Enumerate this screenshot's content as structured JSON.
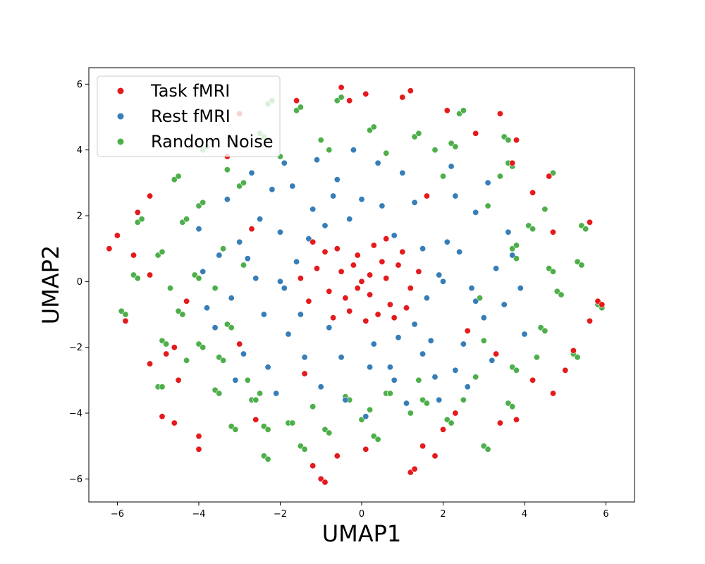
{
  "chart_data": {
    "type": "scatter",
    "xlabel": "UMAP1",
    "ylabel": "UMAP2",
    "xlim": [
      -6.7,
      6.7
    ],
    "ylim": [
      -6.7,
      6.5
    ],
    "xticks": [
      -6,
      -4,
      -2,
      0,
      2,
      4,
      6
    ],
    "yticks": [
      -6,
      -4,
      -2,
      0,
      2,
      4,
      6
    ],
    "xtick_labels": [
      "−6",
      "−4",
      "−2",
      "0",
      "2",
      "4",
      "6"
    ],
    "ytick_labels": [
      "−6",
      "−4",
      "−2",
      "0",
      "2",
      "4",
      "6"
    ],
    "grid": false,
    "legend_position": "upper-left",
    "series": [
      {
        "name": "Task fMRI",
        "color": "#e41a1c",
        "points": [
          [
            -0.5,
            0.3
          ],
          [
            0.2,
            -0.4
          ],
          [
            -0.1,
            0.8
          ],
          [
            0.6,
            0.1
          ],
          [
            -0.8,
            -0.3
          ],
          [
            0.3,
            1.1
          ],
          [
            -0.3,
            -0.9
          ],
          [
            0.9,
            0.5
          ],
          [
            1.2,
            -0.2
          ],
          [
            -1.1,
            0.4
          ],
          [
            0.0,
            0.0
          ],
          [
            0.4,
            -1.0
          ],
          [
            -0.6,
            1.0
          ],
          [
            0.7,
            -0.7
          ],
          [
            -1.3,
            -0.6
          ],
          [
            1.0,
            0.9
          ],
          [
            -0.2,
            0.5
          ],
          [
            0.5,
            0.6
          ],
          [
            -0.9,
            0.9
          ],
          [
            0.1,
            -1.2
          ],
          [
            1.4,
            0.3
          ],
          [
            -1.5,
            0.1
          ],
          [
            0.8,
            -1.1
          ],
          [
            -0.4,
            -0.5
          ],
          [
            0.2,
            0.2
          ],
          [
            -0.7,
            -1.1
          ],
          [
            1.1,
            -0.8
          ],
          [
            -1.2,
            1.2
          ],
          [
            0.6,
            1.3
          ],
          [
            -0.1,
            -0.2
          ],
          [
            -5.5,
            2.1
          ],
          [
            -5.2,
            2.6
          ],
          [
            -6.0,
            1.4
          ],
          [
            -6.2,
            1.0
          ],
          [
            -5.8,
            -1.2
          ],
          [
            -4.8,
            -2.2
          ],
          [
            -4.6,
            -2.0
          ],
          [
            -5.2,
            -2.5
          ],
          [
            -4.9,
            -4.1
          ],
          [
            -4.6,
            -4.3
          ],
          [
            -4.0,
            -4.7
          ],
          [
            -4.0,
            -5.1
          ],
          [
            -4.5,
            -3.0
          ],
          [
            -1.2,
            -5.6
          ],
          [
            -1.0,
            -6.0
          ],
          [
            -0.9,
            -6.1
          ],
          [
            -0.6,
            -5.3
          ],
          [
            0.1,
            -5.1
          ],
          [
            1.2,
            -5.8
          ],
          [
            1.3,
            -5.7
          ],
          [
            1.5,
            -5.0
          ],
          [
            1.8,
            -5.3
          ],
          [
            2.0,
            -4.5
          ],
          [
            2.3,
            -4.0
          ],
          [
            3.4,
            -4.3
          ],
          [
            3.8,
            -4.2
          ],
          [
            4.2,
            -3.0
          ],
          [
            4.7,
            -3.4
          ],
          [
            5.2,
            -2.1
          ],
          [
            5.0,
            -2.7
          ],
          [
            5.6,
            -1.2
          ],
          [
            5.8,
            -0.6
          ],
          [
            5.9,
            -0.7
          ],
          [
            5.6,
            1.8
          ],
          [
            4.7,
            1.5
          ],
          [
            4.2,
            2.7
          ],
          [
            4.6,
            3.2
          ],
          [
            3.7,
            3.6
          ],
          [
            3.8,
            4.3
          ],
          [
            3.4,
            5.1
          ],
          [
            1.2,
            5.8
          ],
          [
            1.0,
            5.6
          ],
          [
            -0.5,
            5.9
          ],
          [
            -0.3,
            5.5
          ],
          [
            0.1,
            5.7
          ],
          [
            -1.6,
            5.5
          ],
          [
            -3.0,
            5.1
          ],
          [
            -5.6,
            0.8
          ],
          [
            -5.2,
            0.2
          ],
          [
            -4.3,
            -0.6
          ],
          [
            -3.0,
            -1.9
          ],
          [
            -2.6,
            -4.2
          ],
          [
            2.8,
            4.5
          ],
          [
            2.1,
            5.2
          ],
          [
            -3.3,
            3.8
          ],
          [
            3.3,
            -2.2
          ],
          [
            2.6,
            -1.5
          ],
          [
            -2.7,
            1.6
          ],
          [
            1.6,
            2.6
          ],
          [
            -1.4,
            -2.8
          ]
        ]
      },
      {
        "name": "Rest fMRI",
        "color": "#377eb8",
        "points": [
          [
            -2.0,
            1.5
          ],
          [
            2.1,
            1.2
          ],
          [
            -1.8,
            -1.6
          ],
          [
            1.7,
            -1.8
          ],
          [
            0.0,
            2.5
          ],
          [
            0.2,
            -2.6
          ],
          [
            -2.6,
            0.1
          ],
          [
            2.7,
            -0.2
          ],
          [
            -1.2,
            2.2
          ],
          [
            1.3,
            2.4
          ],
          [
            -1.4,
            -2.3
          ],
          [
            1.5,
            -2.2
          ],
          [
            -2.4,
            -1.0
          ],
          [
            2.4,
            0.9
          ],
          [
            -3.0,
            1.2
          ],
          [
            3.0,
            -1.1
          ],
          [
            -0.6,
            3.1
          ],
          [
            0.8,
            -3.0
          ],
          [
            -3.2,
            -0.5
          ],
          [
            3.3,
            0.4
          ],
          [
            -2.2,
            2.8
          ],
          [
            2.3,
            -2.7
          ],
          [
            -1.0,
            -3.2
          ],
          [
            1.0,
            3.3
          ],
          [
            -2.9,
            -2.2
          ],
          [
            2.8,
            2.1
          ],
          [
            -3.5,
            0.8
          ],
          [
            3.5,
            -0.7
          ],
          [
            0.4,
            3.6
          ],
          [
            -0.4,
            -3.6
          ],
          [
            -1.6,
            0.6
          ],
          [
            1.6,
            -0.5
          ],
          [
            -0.9,
            1.7
          ],
          [
            0.9,
            -1.7
          ],
          [
            -1.9,
            -0.2
          ],
          [
            1.9,
            0.2
          ],
          [
            -0.3,
            1.9
          ],
          [
            0.3,
            -1.9
          ],
          [
            -2.5,
            1.9
          ],
          [
            2.5,
            -1.9
          ],
          [
            -1.7,
            2.9
          ],
          [
            1.8,
            -2.9
          ],
          [
            -3.6,
            -1.4
          ],
          [
            3.6,
            1.5
          ],
          [
            -0.2,
            4.0
          ],
          [
            0.1,
            -4.1
          ],
          [
            -2.1,
            -3.4
          ],
          [
            2.2,
            3.5
          ],
          [
            -3.9,
            0.3
          ],
          [
            3.9,
            -0.2
          ],
          [
            -1.3,
            1.3
          ],
          [
            1.3,
            -1.3
          ],
          [
            -2.8,
            0.7
          ],
          [
            2.8,
            -0.6
          ],
          [
            -0.7,
            2.6
          ],
          [
            0.7,
            -2.6
          ],
          [
            -3.3,
            2.5
          ],
          [
            3.2,
            -2.4
          ],
          [
            -1.5,
            -1.0
          ],
          [
            1.5,
            1.0
          ],
          [
            -2.3,
            -2.6
          ],
          [
            2.3,
            2.6
          ],
          [
            -0.5,
            -2.3
          ],
          [
            0.5,
            2.3
          ],
          [
            -3.8,
            -0.8
          ],
          [
            3.7,
            0.8
          ],
          [
            -1.1,
            3.7
          ],
          [
            1.1,
            -3.7
          ],
          [
            -2.7,
            3.3
          ],
          [
            2.6,
            -3.2
          ],
          [
            -3.1,
            -3.0
          ],
          [
            3.1,
            3.0
          ],
          [
            -0.8,
            -1.4
          ],
          [
            0.8,
            1.4
          ],
          [
            -4.0,
            1.6
          ],
          [
            4.0,
            -1.6
          ],
          [
            -1.9,
            3.6
          ],
          [
            1.9,
            -3.6
          ],
          [
            -2.0,
            0.0
          ],
          [
            2.0,
            0.0
          ]
        ]
      },
      {
        "name": "Random Noise",
        "color": "#4daf4a",
        "points": [
          [
            -5.5,
            1.8
          ],
          [
            -5.4,
            1.9
          ],
          [
            -5.0,
            0.8
          ],
          [
            -4.9,
            0.9
          ],
          [
            -5.9,
            -0.9
          ],
          [
            -5.8,
            -1.0
          ],
          [
            -5.6,
            0.2
          ],
          [
            -5.5,
            0.1
          ],
          [
            -4.9,
            -1.8
          ],
          [
            -4.8,
            -1.9
          ],
          [
            -4.5,
            -0.9
          ],
          [
            -4.4,
            -1.0
          ],
          [
            -4.0,
            -1.9
          ],
          [
            -3.9,
            -2.0
          ],
          [
            -5.0,
            -3.2
          ],
          [
            -4.9,
            -3.2
          ],
          [
            -3.5,
            -2.3
          ],
          [
            -3.4,
            -2.4
          ],
          [
            -3.6,
            -3.3
          ],
          [
            -3.5,
            -3.4
          ],
          [
            -3.2,
            -4.4
          ],
          [
            -3.1,
            -4.5
          ],
          [
            -2.7,
            -3.6
          ],
          [
            -2.6,
            -3.6
          ],
          [
            -2.4,
            -4.4
          ],
          [
            -2.3,
            -4.5
          ],
          [
            -2.4,
            -5.3
          ],
          [
            -2.3,
            -5.4
          ],
          [
            -1.8,
            -4.3
          ],
          [
            -1.7,
            -4.3
          ],
          [
            -1.5,
            -5.0
          ],
          [
            -1.4,
            -5.1
          ],
          [
            -0.9,
            -4.5
          ],
          [
            -0.8,
            -4.6
          ],
          [
            -0.4,
            -3.5
          ],
          [
            -0.3,
            -3.6
          ],
          [
            0.3,
            -4.7
          ],
          [
            0.4,
            -4.8
          ],
          [
            0.6,
            -3.4
          ],
          [
            0.7,
            -3.4
          ],
          [
            1.5,
            -3.6
          ],
          [
            1.6,
            -3.7
          ],
          [
            2.1,
            -4.2
          ],
          [
            2.2,
            -4.3
          ],
          [
            3.0,
            -5.0
          ],
          [
            3.1,
            -5.1
          ],
          [
            3.6,
            -3.7
          ],
          [
            3.7,
            -3.8
          ],
          [
            3.7,
            -2.6
          ],
          [
            3.8,
            -2.7
          ],
          [
            4.4,
            -1.4
          ],
          [
            4.5,
            -1.5
          ],
          [
            4.8,
            -0.3
          ],
          [
            4.9,
            -0.4
          ],
          [
            5.2,
            -2.2
          ],
          [
            5.3,
            -2.3
          ],
          [
            5.8,
            -0.7
          ],
          [
            5.9,
            -0.8
          ],
          [
            5.3,
            0.6
          ],
          [
            5.4,
            0.5
          ],
          [
            4.6,
            0.4
          ],
          [
            4.7,
            0.3
          ],
          [
            5.4,
            1.7
          ],
          [
            5.5,
            1.6
          ],
          [
            3.7,
            1.0
          ],
          [
            3.8,
            1.1
          ],
          [
            4.1,
            1.7
          ],
          [
            4.2,
            1.6
          ],
          [
            4.6,
            3.2
          ],
          [
            4.7,
            3.3
          ],
          [
            3.6,
            3.6
          ],
          [
            3.7,
            3.5
          ],
          [
            3.5,
            4.4
          ],
          [
            3.6,
            4.3
          ],
          [
            2.4,
            5.1
          ],
          [
            2.5,
            5.2
          ],
          [
            2.2,
            4.2
          ],
          [
            2.3,
            4.1
          ],
          [
            1.3,
            4.4
          ],
          [
            1.4,
            4.5
          ],
          [
            0.2,
            4.6
          ],
          [
            0.3,
            4.7
          ],
          [
            -0.6,
            5.5
          ],
          [
            -0.5,
            5.6
          ],
          [
            -1.6,
            5.2
          ],
          [
            -1.5,
            5.3
          ],
          [
            -2.3,
            5.4
          ],
          [
            -2.2,
            5.5
          ],
          [
            -2.5,
            4.5
          ],
          [
            -2.4,
            4.4
          ],
          [
            -3.9,
            4.0
          ],
          [
            -3.8,
            4.1
          ],
          [
            -4.6,
            3.1
          ],
          [
            -4.5,
            3.2
          ],
          [
            -4.0,
            2.3
          ],
          [
            -3.9,
            2.4
          ],
          [
            -4.4,
            1.8
          ],
          [
            -4.3,
            1.9
          ],
          [
            -3.0,
            2.9
          ],
          [
            -2.9,
            3.0
          ],
          [
            -3.3,
            -1.3
          ],
          [
            -3.2,
            -1.4
          ],
          [
            -4.1,
            0.2
          ],
          [
            -4.0,
            0.1
          ],
          [
            -2.8,
            -3.0
          ],
          [
            -1.2,
            -3.8
          ],
          [
            0.2,
            -3.9
          ],
          [
            1.4,
            -3.0
          ],
          [
            2.8,
            -2.9
          ],
          [
            3.0,
            -1.8
          ],
          [
            3.8,
            0.7
          ],
          [
            3.1,
            2.3
          ],
          [
            2.0,
            3.2
          ],
          [
            0.6,
            3.9
          ],
          [
            -0.8,
            4.0
          ],
          [
            -2.0,
            3.8
          ],
          [
            -3.4,
            1.0
          ],
          [
            -3.6,
            -0.2
          ],
          [
            -2.9,
            0.5
          ],
          [
            2.9,
            -0.5
          ],
          [
            1.2,
            -4.0
          ],
          [
            -1.0,
            4.3
          ],
          [
            4.3,
            -2.3
          ],
          [
            -4.3,
            -2.4
          ],
          [
            0.0,
            -4.2
          ],
          [
            3.4,
            3.2
          ],
          [
            -3.3,
            3.4
          ],
          [
            4.5,
            2.2
          ],
          [
            -4.7,
            -0.2
          ],
          [
            1.8,
            4.0
          ],
          [
            2.5,
            -3.6
          ],
          [
            -2.5,
            -3.4
          ]
        ]
      }
    ]
  }
}
